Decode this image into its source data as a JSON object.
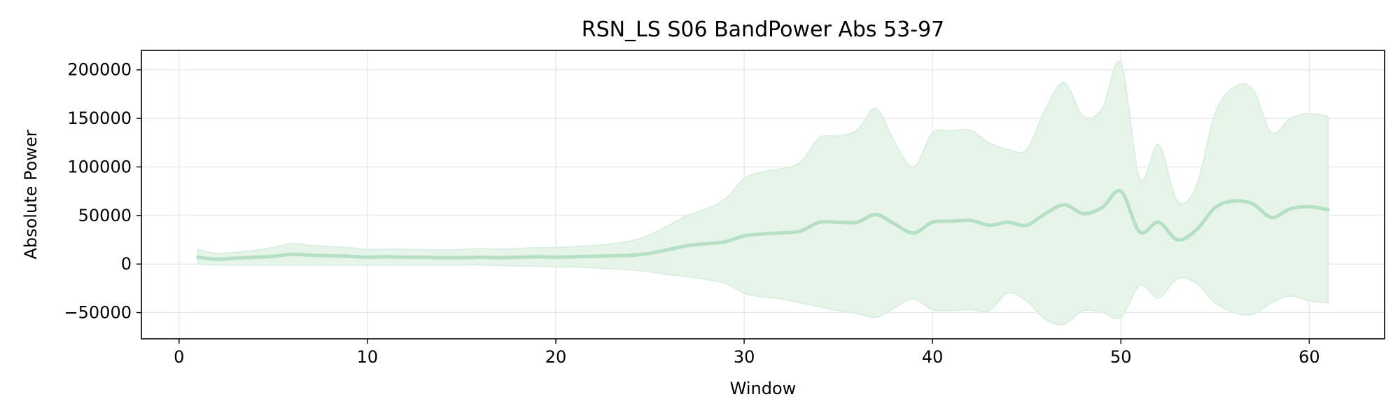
{
  "chart_data": {
    "type": "line",
    "title": "RSN_LS S06 BandPower Abs 53-97",
    "xlabel": "Window",
    "ylabel": "Absolute Power",
    "xlim": [
      -2,
      64
    ],
    "ylim": [
      -77000,
      220000
    ],
    "x_ticks": [
      0,
      10,
      20,
      30,
      40,
      50,
      60
    ],
    "x_tick_labels": [
      "0",
      "10",
      "20",
      "30",
      "40",
      "50",
      "60"
    ],
    "y_ticks": [
      -50000,
      0,
      50000,
      100000,
      150000,
      200000
    ],
    "y_tick_labels": [
      "−50000",
      "0",
      "50000",
      "100000",
      "150000",
      "200000"
    ],
    "grid": true,
    "legend": "none",
    "colors": {
      "line": "#b5e0c3",
      "band": "#e6f4ea",
      "band_edge": "#d6ecdc",
      "grid": "#e6e6e6"
    },
    "series": [
      {
        "x": [
          1,
          2,
          3,
          4,
          5,
          6,
          7,
          8,
          9,
          10,
          11,
          12,
          13,
          14,
          15,
          16,
          17,
          18,
          19,
          20,
          21,
          22,
          23,
          24,
          25,
          26,
          27,
          28,
          29,
          30,
          31,
          32,
          33,
          34,
          35,
          36,
          37,
          38,
          39,
          40,
          41,
          42,
          43,
          44,
          45,
          46,
          47,
          48,
          49,
          50,
          51,
          52,
          53,
          54,
          55,
          56,
          57,
          58,
          59,
          60,
          61
        ],
        "mean": [
          7000,
          5000,
          6000,
          7000,
          8000,
          10000,
          9000,
          8500,
          8000,
          7000,
          7500,
          7000,
          7000,
          6500,
          6500,
          7000,
          6500,
          7000,
          7500,
          7000,
          7500,
          8000,
          8500,
          9000,
          11000,
          15000,
          19000,
          21000,
          23000,
          29000,
          31000,
          32000,
          34000,
          43000,
          43000,
          43000,
          51000,
          41000,
          32000,
          43000,
          44000,
          45000,
          40000,
          43000,
          40000,
          52000,
          61000,
          52000,
          58000,
          75000,
          33000,
          43000,
          25000,
          35000,
          58000,
          65000,
          62000,
          48000,
          57000,
          59000,
          56000
        ],
        "upper": [
          15000,
          11000,
          12000,
          14000,
          17000,
          21000,
          19000,
          18000,
          17000,
          15000,
          15500,
          15000,
          15000,
          14500,
          15000,
          16000,
          15500,
          16000,
          17000,
          17000,
          18000,
          19000,
          21000,
          24000,
          30000,
          40000,
          50000,
          57000,
          67000,
          88000,
          95000,
          98000,
          105000,
          130000,
          132000,
          138000,
          160000,
          125000,
          100000,
          135000,
          137000,
          138000,
          125000,
          118000,
          118000,
          160000,
          187000,
          152000,
          160000,
          207000,
          88000,
          123000,
          65000,
          80000,
          155000,
          182000,
          180000,
          135000,
          150000,
          155000,
          152000
        ],
        "lower": [
          0,
          -1000,
          -1000,
          -1000,
          -1000,
          -1000,
          -1000,
          -1000,
          -1000,
          -1000,
          -1000,
          -1000,
          -1000,
          -1000,
          -1000,
          -1000,
          -1500,
          -2000,
          -2000,
          -3000,
          -3000,
          -4000,
          -5000,
          -6000,
          -8000,
          -11000,
          -13000,
          -16000,
          -20000,
          -30000,
          -34000,
          -36000,
          -40000,
          -44000,
          -48000,
          -51000,
          -55000,
          -45000,
          -36000,
          -47000,
          -48000,
          -47000,
          -48000,
          -30000,
          -38000,
          -57000,
          -62000,
          -48000,
          -50000,
          -55000,
          -22000,
          -35000,
          -15000,
          -20000,
          -40000,
          -50000,
          -52000,
          -40000,
          -33000,
          -38000,
          -40000
        ]
      }
    ]
  }
}
